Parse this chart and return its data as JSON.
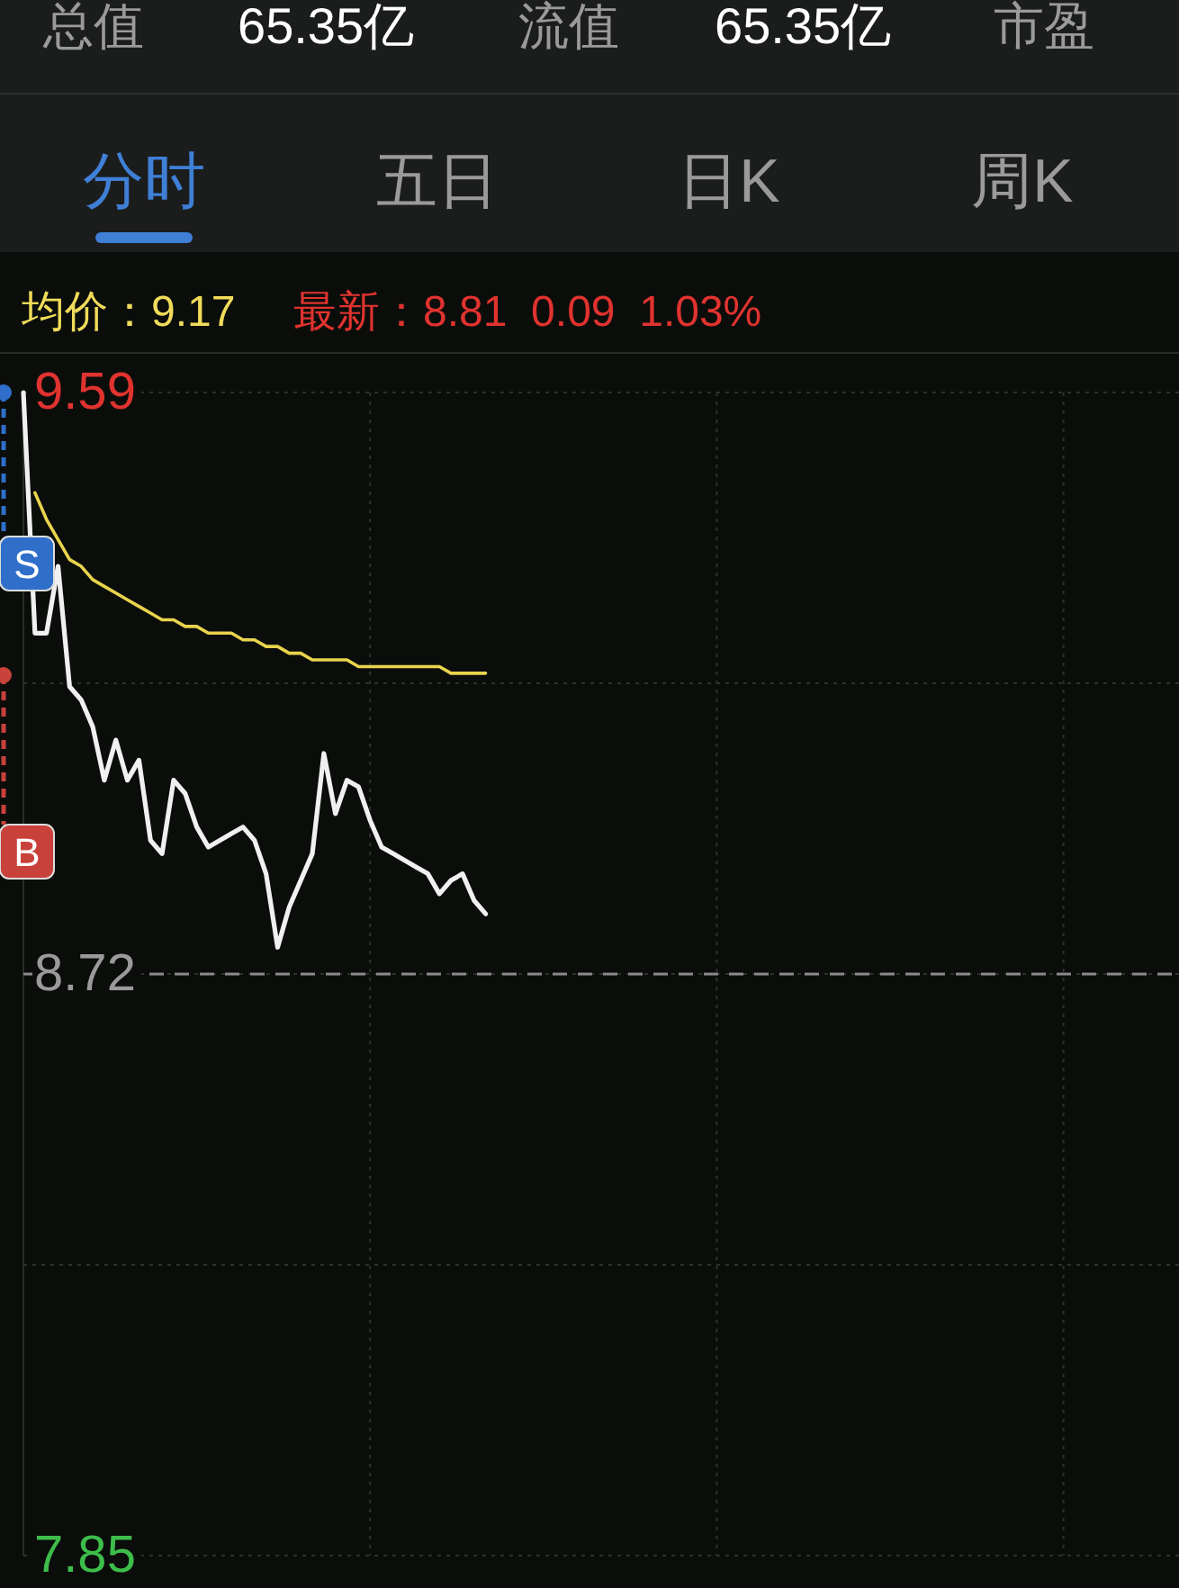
{
  "chart_data": {
    "type": "line",
    "categories": [
      null,
      null,
      null,
      null,
      null,
      null,
      null,
      null,
      null,
      null,
      null,
      null,
      null,
      null,
      null,
      null,
      null,
      null,
      null,
      null,
      null,
      null,
      null,
      null,
      null,
      null,
      null,
      null,
      null,
      null,
      null,
      null,
      null,
      null,
      null,
      null,
      null,
      null,
      null,
      null,
      null,
      null,
      null,
      null,
      null,
      null,
      null,
      null,
      null,
      null,
      null,
      null,
      null,
      null,
      null,
      null,
      null,
      null,
      null,
      null,
      null,
      null,
      null,
      null,
      null,
      null,
      null,
      null,
      null,
      null,
      null,
      null,
      null,
      null,
      null,
      null,
      null,
      null,
      null,
      null,
      null,
      null,
      null,
      null,
      null,
      null,
      null,
      null,
      null,
      null,
      null,
      null,
      null,
      null,
      null,
      null,
      null,
      null,
      null,
      null,
      null
    ],
    "series": [
      {
        "color": "#f0f0f0",
        "values": [
          9.59,
          9.23,
          9.23,
          9.33,
          9.15,
          9.13,
          9.09,
          9.01,
          9.07,
          9.01,
          9.04,
          8.92,
          8.9,
          9.01,
          8.99,
          8.94,
          8.91,
          8.92,
          8.93,
          8.94,
          8.92,
          8.87,
          8.76,
          8.82,
          8.86,
          8.9,
          9.05,
          8.96,
          9.01,
          9.0,
          8.95,
          8.91,
          8.9,
          8.89,
          8.88,
          8.87,
          8.84,
          8.86,
          8.87,
          8.83,
          8.81,
          null,
          null,
          null,
          null,
          null,
          null,
          null,
          null,
          null,
          null,
          null,
          null,
          null,
          null,
          null,
          null,
          null,
          null,
          null,
          null,
          null,
          null,
          null,
          null,
          null,
          null,
          null,
          null,
          null,
          null,
          null,
          null,
          null,
          null,
          null,
          null,
          null,
          null,
          null,
          null,
          null,
          null,
          null,
          null,
          null,
          null,
          null,
          null,
          null,
          null,
          null,
          null,
          null,
          null,
          null,
          null,
          null,
          null,
          null,
          null
        ]
      },
      {
        "color": "#e8d44d",
        "values": [
          null,
          9.44,
          9.4,
          9.37,
          9.34,
          9.33,
          9.31,
          9.3,
          9.29,
          9.28,
          9.27,
          9.26,
          9.25,
          9.25,
          9.24,
          9.24,
          9.23,
          9.23,
          9.23,
          9.22,
          9.22,
          9.21,
          9.21,
          9.2,
          9.2,
          9.19,
          9.19,
          9.19,
          9.19,
          9.18,
          9.18,
          9.18,
          9.18,
          9.18,
          9.18,
          9.18,
          9.18,
          9.17,
          9.17,
          9.17,
          9.17,
          null,
          null,
          null,
          null,
          null,
          null,
          null,
          null,
          null,
          null,
          null,
          null,
          null,
          null,
          null,
          null,
          null,
          null,
          null,
          null,
          null,
          null,
          null,
          null,
          null,
          null,
          null,
          null,
          null,
          null,
          null,
          null,
          null,
          null,
          null,
          null,
          null,
          null,
          null,
          null,
          null,
          null,
          null,
          null,
          null,
          null,
          null,
          null,
          null,
          null,
          null,
          null,
          null,
          null,
          null,
          null,
          null,
          null,
          null,
          null
        ]
      }
    ],
    "ylim": [
      7.85,
      9.59
    ],
    "yticks": [
      7.85,
      {
        "value": 8.285,
        "label": null
      },
      8.72,
      {
        "value": 9.155,
        "label": null
      },
      9.59
    ],
    "tick_labels": "y",
    "grid": true,
    "ref_lines": [
      {
        "axis": "y",
        "value": 8.72,
        "line_style": "dashed",
        "color": "#8a8a8a"
      }
    ],
    "annotations": [
      "总值",
      "65.35亿",
      "流值",
      "65.35亿",
      "市盈",
      "分时",
      "五日",
      "日K",
      "周K",
      "均价：9.17",
      "最新：8.81  0.09  1.03%",
      "S",
      "B"
    ]
  }
}
